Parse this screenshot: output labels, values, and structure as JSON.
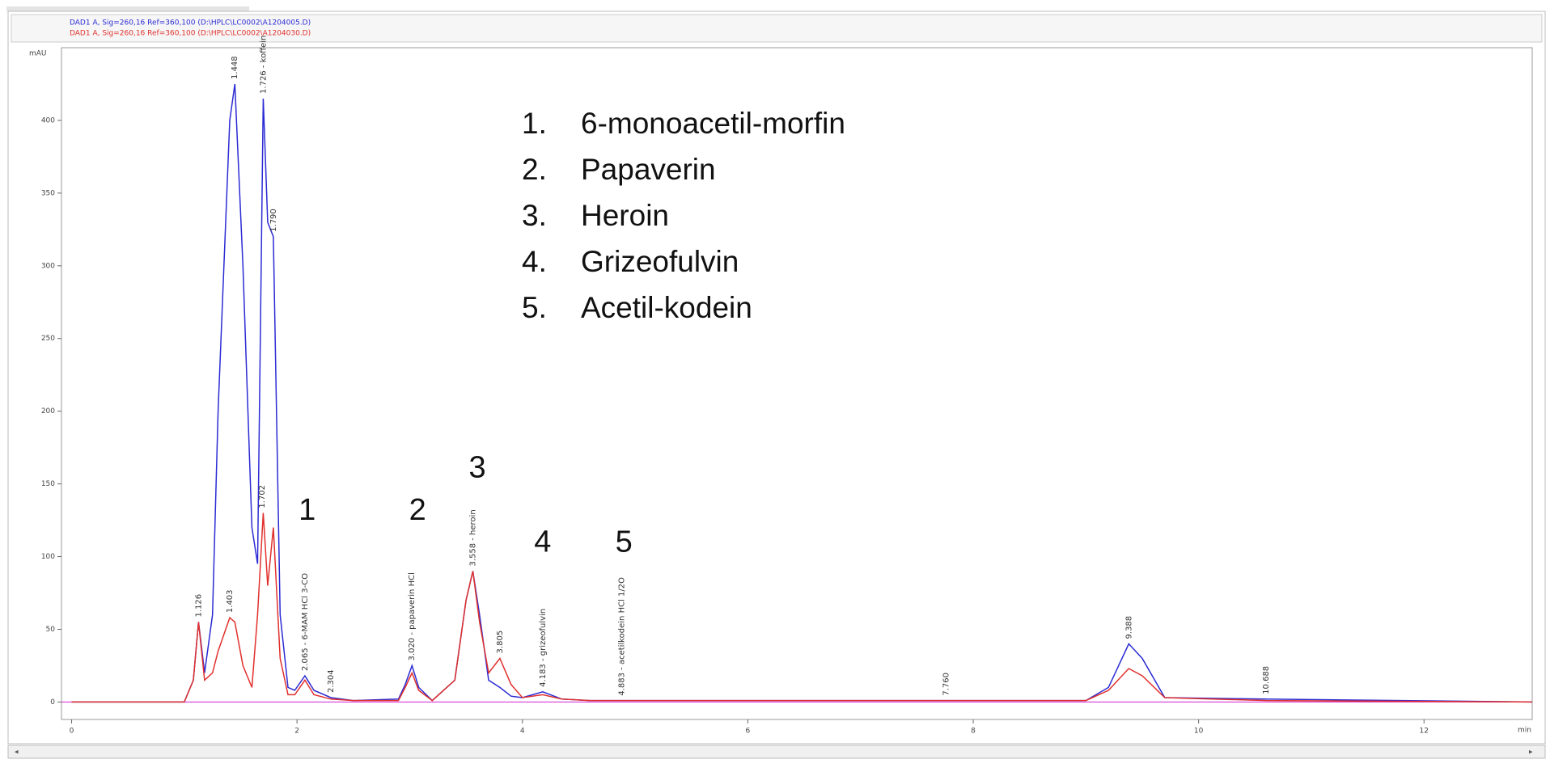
{
  "chart_data": {
    "type": "line",
    "x_unit": "min",
    "y_unit": "mAU",
    "x": [
      0,
      1.0,
      1.08,
      1.126,
      1.18,
      1.25,
      1.3,
      1.403,
      1.448,
      1.52,
      1.6,
      1.65,
      1.7,
      1.74,
      1.79,
      1.85,
      1.92,
      1.98,
      2.07,
      2.15,
      2.3,
      2.5,
      2.9,
      2.96,
      3.02,
      3.08,
      3.2,
      3.4,
      3.5,
      3.56,
      3.62,
      3.7,
      3.8,
      3.9,
      4.0,
      4.18,
      4.35,
      4.6,
      9.0,
      9.2,
      9.38,
      9.5,
      9.7,
      10.6,
      12.96
    ],
    "series": [
      {
        "name": "DAD1 A, Sig=260,16 Ref=360,100 (D:\\HPLC\\LC0002\\A1204005.D)",
        "color": "#2b2bd4",
        "values": [
          0,
          0,
          15,
          55,
          20,
          60,
          200,
          400,
          425,
          300,
          120,
          95,
          415,
          330,
          320,
          60,
          10,
          8,
          18,
          8,
          3,
          1,
          2,
          12,
          25,
          10,
          1,
          15,
          70,
          90,
          60,
          15,
          10,
          4,
          3,
          7,
          2,
          1,
          1,
          10,
          40,
          30,
          3,
          2,
          0
        ]
      },
      {
        "name": "DAD1 A, Sig=260,16 Ref=360,100 (D:\\HPLC\\LC0002\\A1204030.D)",
        "color": "#e0302c",
        "values": [
          0,
          0,
          15,
          55,
          15,
          20,
          35,
          58,
          55,
          25,
          10,
          60,
          130,
          80,
          120,
          30,
          5,
          5,
          15,
          5,
          2,
          1,
          1,
          10,
          20,
          8,
          1,
          15,
          70,
          90,
          55,
          20,
          30,
          12,
          3,
          5,
          2,
          1,
          1,
          8,
          23,
          18,
          3,
          1,
          0
        ]
      }
    ],
    "xlim": [
      -0.09,
      12.96
    ],
    "ylim": [
      -12,
      450
    ],
    "xticks": [
      0,
      2,
      4,
      6,
      8,
      10,
      12
    ],
    "yticks": [
      0,
      50,
      100,
      150,
      200,
      250,
      300,
      350,
      400
    ],
    "peak_labels": [
      {
        "x": 1.126,
        "y": 55,
        "text": "1.126"
      },
      {
        "x": 1.403,
        "y": 58,
        "text": "1.403"
      },
      {
        "x": 1.448,
        "y": 425,
        "text": "1.448"
      },
      {
        "x": 1.7,
        "y": 415,
        "text": "1.726 - koffein"
      },
      {
        "x": 1.79,
        "y": 320,
        "text": "1.790"
      },
      {
        "x": 1.69,
        "y": 130,
        "text": "1.702"
      },
      {
        "x": 2.07,
        "y": 18,
        "text": "2.065 - 6-MAM HCl 3-CO"
      },
      {
        "x": 2.3,
        "y": 3,
        "text": "2.304"
      },
      {
        "x": 3.02,
        "y": 25,
        "text": "3.020 - papaverin HCl"
      },
      {
        "x": 3.56,
        "y": 90,
        "text": "3.558 - heroin"
      },
      {
        "x": 3.8,
        "y": 30,
        "text": "3.805"
      },
      {
        "x": 4.18,
        "y": 7,
        "text": "4.183 - grizeofulvin"
      },
      {
        "x": 4.88,
        "y": 1,
        "text": "4.883 - acetilkodein HCl 1/2O"
      },
      {
        "x": 7.76,
        "y": 1,
        "text": "7.760"
      },
      {
        "x": 9.38,
        "y": 40,
        "text": "9.388"
      },
      {
        "x": 10.6,
        "y": 2,
        "text": "10.688"
      }
    ],
    "peak_markers": [
      {
        "x": 2.09,
        "y": 131,
        "text": "1"
      },
      {
        "x": 3.07,
        "y": 131,
        "text": "2"
      },
      {
        "x": 3.6,
        "y": 160,
        "text": "3"
      },
      {
        "x": 4.18,
        "y": 109,
        "text": "4"
      },
      {
        "x": 4.9,
        "y": 109,
        "text": "5"
      }
    ],
    "compound_list": [
      {
        "number": "1.",
        "text": "6-monoacetil-morfin"
      },
      {
        "number": "2.",
        "text": "Papaverin"
      },
      {
        "number": "3.",
        "text": "Heroin"
      },
      {
        "number": "4.",
        "text": "Grizeofulvin"
      },
      {
        "number": "5.",
        "text": "Acetil-kodein"
      }
    ]
  }
}
